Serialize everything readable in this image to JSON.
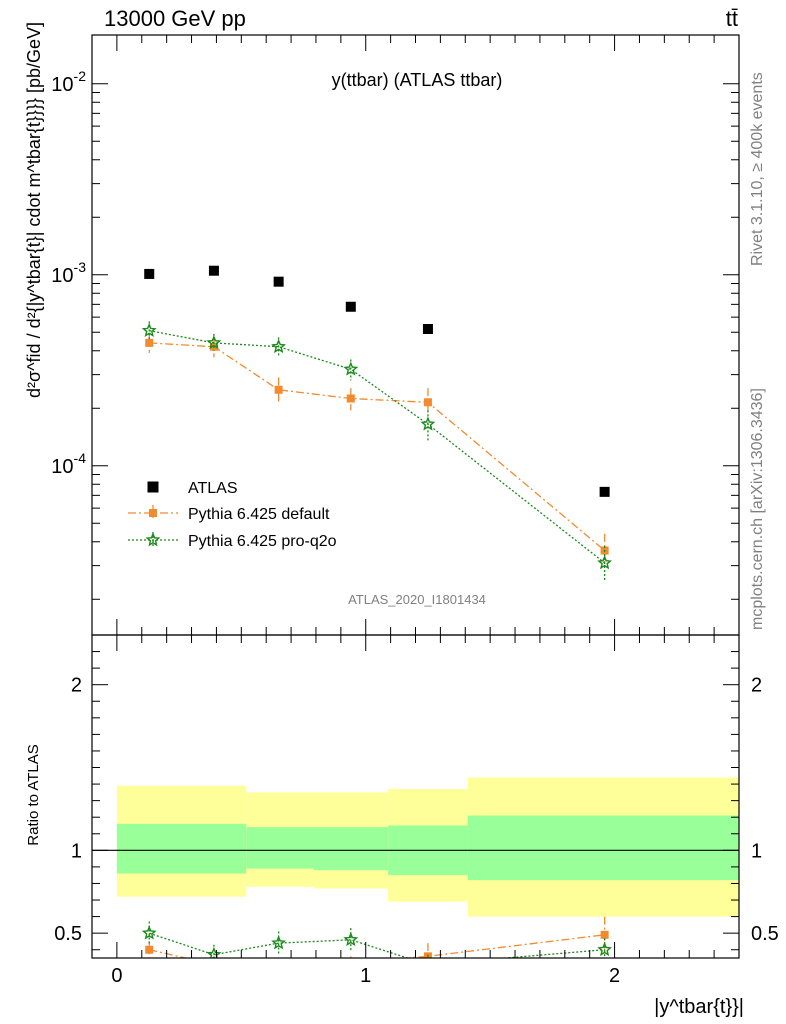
{
  "header": {
    "left": "13000 GeV pp",
    "right": "tt̄"
  },
  "side": {
    "rivet": "Rivet 3.1.10, ≥ 400k events",
    "mcplots": "mcplots.cern.ch [arXiv:1306.3436]"
  },
  "watermark": "ATLAS_2020_I1801434",
  "chart_data": [
    {
      "type": "scatter",
      "title": "y(ttbar) (ATLAS ttbar)",
      "ylabel": "d²σ^fid / d²{|y^tbar{t}| cdot m^tbar{t}}}} [pb/GeV]",
      "yscale": "log",
      "ylim": [
        1.3e-05,
        0.018
      ],
      "xlim": [
        -0.1,
        2.5
      ],
      "y_tick_labels": [
        "10^-2",
        "10^-3",
        "10^-4"
      ],
      "legend_position": "lower-left",
      "series": [
        {
          "name": "ATLAS",
          "color": "#000000",
          "marker": "square",
          "x": [
            0.13,
            0.39,
            0.65,
            0.94,
            1.25,
            1.96
          ],
          "y": [
            0.00101,
            0.00105,
            0.00092,
            0.00068,
            0.00052,
            7.3e-05
          ]
        },
        {
          "name": "Pythia 6.425 default",
          "color": "#f28b30",
          "marker": "square",
          "line": "dashdot",
          "x": [
            0.13,
            0.39,
            0.65,
            0.94,
            1.25,
            1.96
          ],
          "y": [
            0.00044,
            0.00042,
            0.00025,
            0.000225,
            0.000215,
            3.6e-05
          ],
          "yerr_low": [
            5e-05,
            5e-05,
            4e-05,
            3e-05,
            3e-05,
            6e-06
          ],
          "yerr_high": [
            5e-05,
            5e-05,
            4e-05,
            3e-05,
            4e-05,
            8e-06
          ]
        },
        {
          "name": "Pythia 6.425 pro-q2o",
          "color": "#1a8a1a",
          "marker": "star",
          "line": "dotted",
          "x": [
            0.13,
            0.39,
            0.65,
            0.94,
            1.25,
            1.96
          ],
          "y": [
            0.00051,
            0.00044,
            0.00042,
            0.00032,
            0.000165,
            3.1e-05
          ],
          "yerr_low": [
            5e-05,
            4e-05,
            5e-05,
            4e-05,
            3e-05,
            6e-06
          ],
          "yerr_high": [
            6e-05,
            5e-05,
            5e-05,
            4e-05,
            3e-05,
            7e-06
          ]
        }
      ]
    },
    {
      "type": "scatter",
      "ylabel": "Ratio to ATLAS",
      "xlabel": "|y^tbar{t}}|",
      "ylim": [
        0.35,
        2.3
      ],
      "xlim": [
        -0.1,
        2.5
      ],
      "y_tick_labels": [
        "0.5",
        "1",
        "2"
      ],
      "x_tick_labels": [
        "0",
        "1",
        "2"
      ],
      "reference_line": 1,
      "bands": [
        {
          "x": [
            0.0,
            0.52
          ],
          "yellow": [
            0.72,
            1.39
          ],
          "green": [
            0.86,
            1.16
          ]
        },
        {
          "x": [
            0.52,
            0.79
          ],
          "yellow": [
            0.78,
            1.35
          ],
          "green": [
            0.89,
            1.14
          ]
        },
        {
          "x": [
            0.79,
            1.09
          ],
          "yellow": [
            0.77,
            1.35
          ],
          "green": [
            0.88,
            1.14
          ]
        },
        {
          "x": [
            1.09,
            1.41
          ],
          "yellow": [
            0.69,
            1.37
          ],
          "green": [
            0.85,
            1.15
          ]
        },
        {
          "x": [
            1.41,
            2.5
          ],
          "yellow": [
            0.6,
            1.44
          ],
          "green": [
            0.82,
            1.21
          ]
        }
      ],
      "series": [
        {
          "name": "Pythia 6.425 default",
          "color": "#f28b30",
          "marker": "square",
          "line": "dashdot",
          "x": [
            0.13,
            0.39,
            0.65,
            0.94,
            1.25,
            1.96
          ],
          "y": [
            0.4,
            0.31,
            0.27,
            0.32,
            0.36,
            0.49
          ],
          "yerr": [
            0.05,
            0.05,
            0.04,
            0.04,
            0.08,
            0.11
          ]
        },
        {
          "name": "Pythia 6.425 pro-q2o",
          "color": "#1a8a1a",
          "marker": "star",
          "line": "dotted",
          "x": [
            0.13,
            0.39,
            0.65,
            0.94,
            1.25,
            1.96
          ],
          "y": [
            0.5,
            0.37,
            0.44,
            0.46,
            0.31,
            0.4
          ],
          "yerr": [
            0.07,
            0.06,
            0.07,
            0.07,
            0.06,
            0.07
          ]
        }
      ]
    }
  ]
}
